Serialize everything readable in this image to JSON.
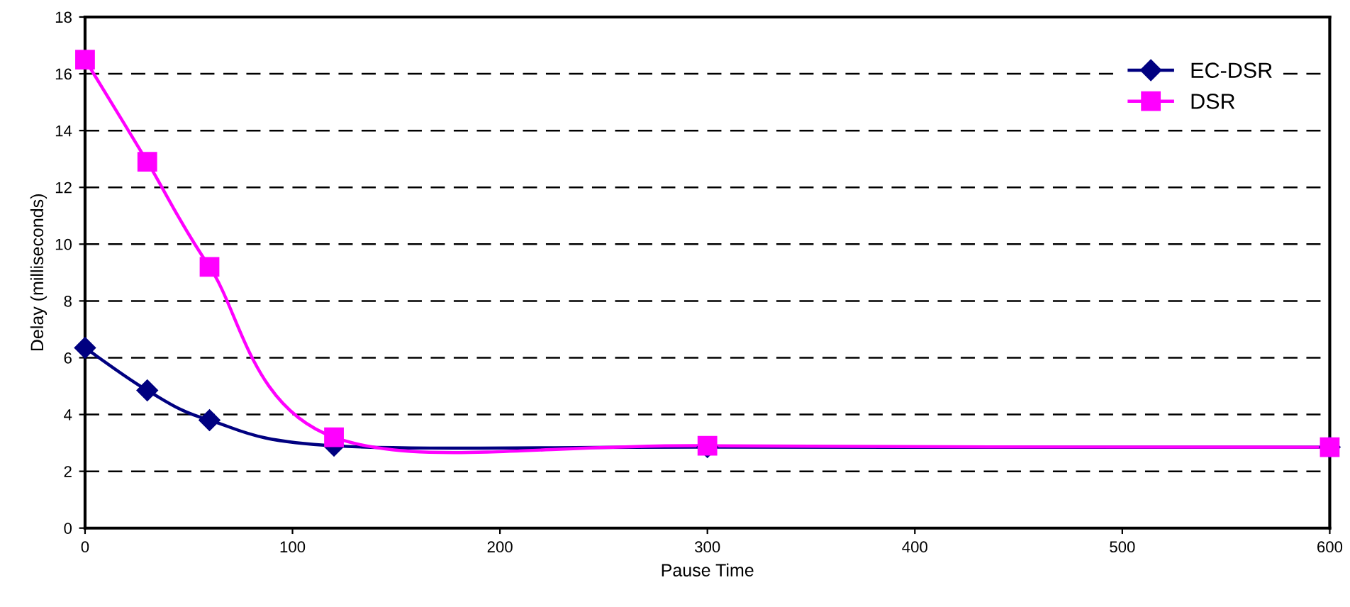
{
  "chart_data": {
    "type": "line",
    "xlabel": "Pause Time",
    "ylabel": "Delay (milliseconds)",
    "x": [
      0,
      30,
      60,
      120,
      300,
      600
    ],
    "series": [
      {
        "name": "EC-DSR",
        "color": "#000080",
        "marker": "diamond",
        "values": [
          6.35,
          4.85,
          3.8,
          2.9,
          2.85,
          2.85
        ]
      },
      {
        "name": "DSR",
        "color": "#ff00ff",
        "marker": "square",
        "values": [
          16.5,
          12.9,
          9.2,
          3.2,
          2.9,
          2.85
        ]
      }
    ],
    "xlim": [
      0,
      600
    ],
    "xticks": [
      0,
      100,
      200,
      300,
      400,
      500,
      600
    ],
    "ylim": [
      0,
      18
    ],
    "yticks": [
      0,
      2,
      4,
      6,
      8,
      10,
      12,
      14,
      16,
      18
    ],
    "grid": "y",
    "legend": "top right",
    "line_style": "solid"
  }
}
